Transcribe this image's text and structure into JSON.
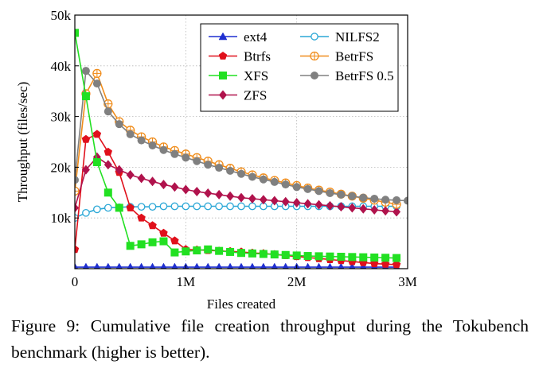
{
  "chart_data": {
    "type": "line",
    "title": "",
    "xlabel": "Files created",
    "ylabel": "Throughput (files/sec)",
    "xlim": [
      0,
      3000000
    ],
    "ylim": [
      0,
      50000
    ],
    "x_ticks": [
      {
        "value": 0,
        "label": "0"
      },
      {
        "value": 1000000,
        "label": "1M"
      },
      {
        "value": 2000000,
        "label": "2M"
      },
      {
        "value": 3000000,
        "label": "3M"
      }
    ],
    "y_ticks": [
      {
        "value": 10000,
        "label": "10k"
      },
      {
        "value": 20000,
        "label": "20k"
      },
      {
        "value": 30000,
        "label": "30k"
      },
      {
        "value": 40000,
        "label": "40k"
      },
      {
        "value": 50000,
        "label": "50k"
      }
    ],
    "grid": true,
    "legend_position": "top-right",
    "series": [
      {
        "name": "ext4",
        "color": "#1f2fd0",
        "marker": "triangle",
        "x": [
          0,
          100000,
          200000,
          300000,
          400000,
          500000,
          600000,
          700000,
          800000,
          900000,
          1000000,
          1100000,
          1200000,
          1300000,
          1400000,
          1500000,
          1600000,
          1700000,
          1800000,
          1900000,
          2000000,
          2100000,
          2200000,
          2300000,
          2400000,
          2500000,
          2600000,
          2700000,
          2800000,
          2900000
        ],
        "values": [
          300,
          300,
          300,
          300,
          300,
          300,
          300,
          300,
          300,
          300,
          300,
          300,
          300,
          300,
          300,
          300,
          300,
          300,
          300,
          300,
          300,
          300,
          300,
          300,
          300,
          300,
          300,
          300,
          300,
          300
        ]
      },
      {
        "name": "NILFS2",
        "color": "#2aa7d6",
        "marker": "circle-open",
        "x": [
          0,
          100000,
          200000,
          300000,
          400000,
          500000,
          600000,
          700000,
          800000,
          900000,
          1000000,
          1100000,
          1200000,
          1300000,
          1400000,
          1500000,
          1600000,
          1700000,
          1800000,
          1900000,
          2000000,
          2100000,
          2200000,
          2300000,
          2400000,
          2500000,
          2600000,
          2700000,
          2800000,
          2900000
        ],
        "values": [
          10000,
          11000,
          11700,
          12000,
          12100,
          12200,
          12200,
          12200,
          12300,
          12300,
          12300,
          12300,
          12300,
          12300,
          12300,
          12300,
          12300,
          12300,
          12300,
          12300,
          12300,
          12300,
          12300,
          12300,
          12300,
          12300,
          12300,
          12300,
          12300,
          12300
        ]
      },
      {
        "name": "Btrfs",
        "color": "#e0101b",
        "marker": "pentagon",
        "x": [
          0,
          100000,
          200000,
          300000,
          400000,
          500000,
          600000,
          700000,
          800000,
          900000,
          1000000,
          1100000,
          1200000,
          1300000,
          1400000,
          1500000,
          1600000,
          1700000,
          1800000,
          1900000,
          2000000,
          2100000,
          2200000,
          2300000,
          2400000,
          2500000,
          2600000,
          2700000,
          2800000,
          2900000
        ],
        "values": [
          3800,
          25500,
          26500,
          23000,
          19000,
          12000,
          10000,
          8500,
          7000,
          5500,
          3800,
          3700,
          3600,
          3500,
          3400,
          3300,
          3100,
          3000,
          2800,
          2600,
          2400,
          2200,
          2000,
          1800,
          1600,
          1400,
          1200,
          1000,
          900,
          800
        ]
      },
      {
        "name": "BetrFS",
        "color": "#f08c1a",
        "marker": "circle-plus",
        "x": [
          0,
          100000,
          200000,
          300000,
          400000,
          500000,
          600000,
          700000,
          800000,
          900000,
          1000000,
          1100000,
          1200000,
          1300000,
          1400000,
          1500000,
          1600000,
          1700000,
          1800000,
          1900000,
          2000000,
          2100000,
          2200000,
          2300000,
          2400000,
          2500000,
          2600000,
          2700000,
          2800000,
          2900000
        ],
        "values": [
          15300,
          34500,
          38500,
          32500,
          29000,
          27300,
          26000,
          25000,
          24000,
          23300,
          22600,
          21900,
          21200,
          20500,
          19800,
          19100,
          18500,
          17900,
          17400,
          16900,
          16400,
          15900,
          15500,
          15100,
          14700,
          14300,
          13900,
          13500,
          13100,
          12700
        ]
      },
      {
        "name": "XFS",
        "color": "#22e022",
        "marker": "square",
        "x": [
          0,
          100000,
          200000,
          300000,
          400000,
          500000,
          600000,
          700000,
          800000,
          900000,
          1000000,
          1100000,
          1200000,
          1300000,
          1400000,
          1500000,
          1600000,
          1700000,
          1800000,
          1900000,
          2000000,
          2100000,
          2200000,
          2300000,
          2400000,
          2500000,
          2600000,
          2700000,
          2800000,
          2900000
        ],
        "values": [
          46500,
          34000,
          21000,
          15000,
          12000,
          4500,
          4800,
          5200,
          5400,
          3200,
          3400,
          3600,
          3800,
          3500,
          3300,
          3100,
          3000,
          2900,
          2800,
          2700,
          2600,
          2500,
          2450,
          2400,
          2350,
          2300,
          2250,
          2200,
          2150,
          2100
        ]
      },
      {
        "name": "BetrFS 0.5",
        "color": "#808080",
        "marker": "circle",
        "x": [
          0,
          100000,
          200000,
          300000,
          400000,
          500000,
          600000,
          700000,
          800000,
          900000,
          1000000,
          1100000,
          1200000,
          1300000,
          1400000,
          1500000,
          1600000,
          1700000,
          1800000,
          1900000,
          2000000,
          2100000,
          2200000,
          2300000,
          2400000,
          2500000,
          2600000,
          2700000,
          2800000,
          2900000,
          3000000
        ],
        "values": [
          17500,
          39000,
          36500,
          31000,
          28500,
          26500,
          25300,
          24300,
          23400,
          22600,
          21900,
          21200,
          20500,
          19900,
          19300,
          18700,
          18100,
          17600,
          17100,
          16600,
          16100,
          15700,
          15300,
          14900,
          14600,
          14300,
          14000,
          13800,
          13600,
          13500,
          13400
        ]
      },
      {
        "name": "ZFS",
        "color": "#b0124c",
        "marker": "diamond",
        "x": [
          0,
          100000,
          200000,
          300000,
          400000,
          500000,
          600000,
          700000,
          800000,
          900000,
          1000000,
          1100000,
          1200000,
          1300000,
          1400000,
          1500000,
          1600000,
          1700000,
          1800000,
          1900000,
          2000000,
          2100000,
          2200000,
          2300000,
          2400000,
          2500000,
          2600000,
          2700000,
          2800000,
          2900000
        ],
        "values": [
          12000,
          19500,
          22000,
          20500,
          19500,
          18500,
          17800,
          17200,
          16600,
          16100,
          15600,
          15200,
          14900,
          14600,
          14300,
          14000,
          13800,
          13600,
          13400,
          13200,
          13000,
          12800,
          12600,
          12400,
          12200,
          12000,
          11800,
          11600,
          11400,
          11200
        ]
      }
    ]
  },
  "caption": "Figure 9: Cumulative file creation throughput during the Tokubench benchmark (higher is better)."
}
